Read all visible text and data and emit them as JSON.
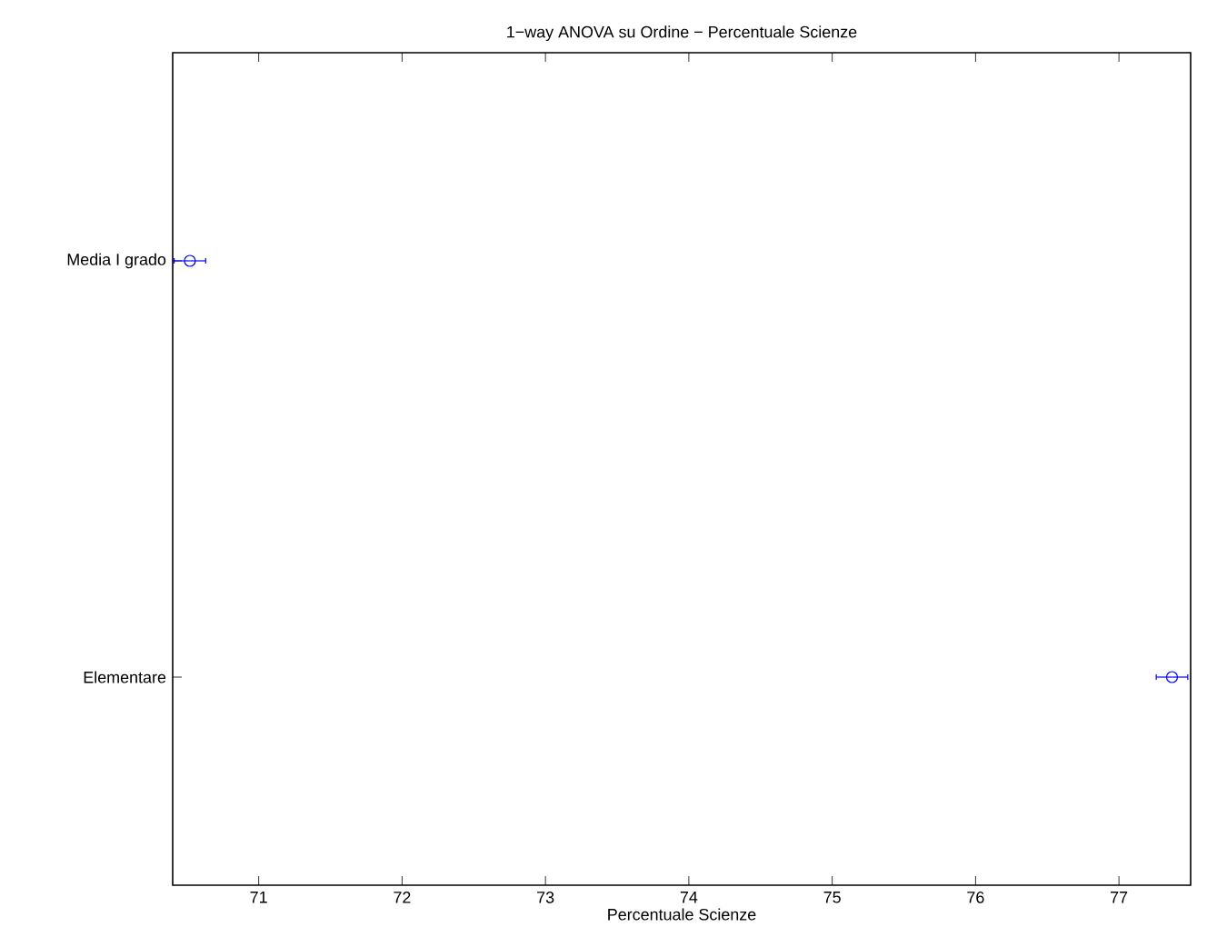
{
  "chart_data": {
    "type": "scatter",
    "orientation": "horizontal",
    "title": "1−way ANOVA su Ordine − Percentuale Scienze",
    "xlabel": "Percentuale Scienze",
    "categories": [
      "Media I grado",
      "Elementare"
    ],
    "values": [
      70.52,
      77.37
    ],
    "errors": [
      0.11,
      0.11
    ],
    "color": "#0000ff",
    "marker": "circle",
    "xlim": [
      70.4,
      77.5
    ],
    "xticks": [
      71,
      72,
      73,
      74,
      75,
      76,
      77
    ]
  }
}
